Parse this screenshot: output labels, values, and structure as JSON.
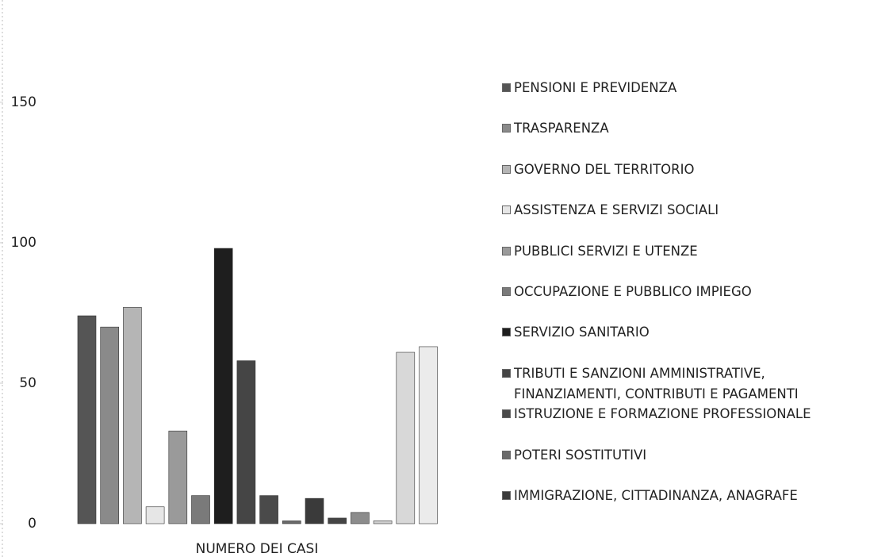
{
  "chart_data": {
    "type": "bar",
    "categories": [
      "NUMERO DEI CASI"
    ],
    "series": [
      {
        "name": "PENSIONI E PREVIDENZA",
        "color": "#555555",
        "values": [
          74
        ]
      },
      {
        "name": "TRASPARENZA",
        "color": "#8a8a8a",
        "values": [
          70
        ]
      },
      {
        "name": "GOVERNO DEL TERRITORIO",
        "color": "#b5b5b5",
        "values": [
          77
        ]
      },
      {
        "name": "ASSISTENZA E SERVIZI SOCIALI",
        "color": "#e6e6e6",
        "values": [
          6
        ]
      },
      {
        "name": "PUBBLICI SERVIZI E UTENZE",
        "color": "#9a9a9a",
        "values": [
          33
        ]
      },
      {
        "name": "OCCUPAZIONE E PUBBLICO IMPIEGO",
        "color": "#7a7a7a",
        "values": [
          10
        ]
      },
      {
        "name": "SERVIZIO SANITARIO",
        "color": "#1e1e1e",
        "values": [
          98
        ]
      },
      {
        "name": "TRIBUTI E SANZIONI AMMINISTRATIVE, FINANZIAMENTI, CONTRIBUTI E PAGAMENTI",
        "color": "#454545",
        "values": [
          58
        ]
      },
      {
        "name": "ISTRUZIONE E FORMAZIONE PROFESSIONALE",
        "color": "#4a4a4a",
        "values": [
          10
        ]
      },
      {
        "name": "POTERI SOSTITUTIVI",
        "color": "#6a6a6a",
        "values": [
          1
        ]
      },
      {
        "name": "IMMIGRAZIONE, CITTADINANZA, ANAGRAFE",
        "color": "#3a3a3a",
        "values": [
          9
        ]
      },
      {
        "name": null,
        "color": "#444444",
        "values": [
          2
        ]
      },
      {
        "name": null,
        "color": "#8c8c8c",
        "values": [
          4
        ]
      },
      {
        "name": null,
        "color": "#cfcfcf",
        "values": [
          1
        ]
      },
      {
        "name": null,
        "color": "#d8d8d8",
        "values": [
          61
        ]
      },
      {
        "name": null,
        "color": "#ebebeb",
        "values": [
          63
        ]
      }
    ],
    "ylim": [
      0,
      185
    ],
    "yticks": [
      0,
      50,
      100,
      150
    ],
    "grid": false
  }
}
